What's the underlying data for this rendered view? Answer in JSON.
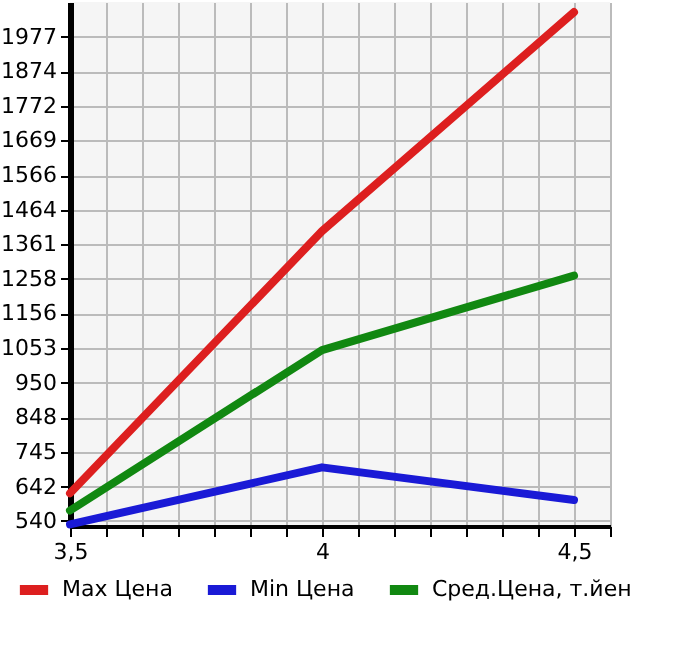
{
  "chart_data": {
    "type": "line",
    "x": [
      3.5,
      4,
      4.5
    ],
    "series": [
      {
        "name": "Max Цена",
        "color": "#dd1f1f",
        "values": [
          622,
          1400,
          2050
        ]
      },
      {
        "name": "Min Цена",
        "color": "#1a1ad6",
        "values": [
          530,
          699,
          602
        ]
      },
      {
        "name": "Сред.Цена, т.йен",
        "color": "#118811",
        "values": [
          571,
          1047,
          1268
        ]
      }
    ],
    "xlim": [
      3.5,
      4.5714
    ],
    "xticks": [
      {
        "value": 3.5,
        "label": "3,5"
      },
      {
        "value": 3.5714,
        "label": null
      },
      {
        "value": 3.6429,
        "label": null
      },
      {
        "value": 3.7143,
        "label": null
      },
      {
        "value": 3.7857,
        "label": null
      },
      {
        "value": 3.8571,
        "label": null
      },
      {
        "value": 3.9286,
        "label": null
      },
      4,
      {
        "value": 4.0714,
        "label": null
      },
      {
        "value": 4.1429,
        "label": null
      },
      {
        "value": 4.2143,
        "label": null
      },
      {
        "value": 4.2857,
        "label": null
      },
      {
        "value": 4.3571,
        "label": null
      },
      {
        "value": 4.4286,
        "label": null
      },
      {
        "value": 4.5,
        "label": "4,5"
      },
      {
        "value": 4.5714,
        "label": null
      }
    ],
    "ylim": [
      525,
      2080
    ],
    "yticks": [
      540,
      642,
      745,
      848,
      950,
      1053,
      1156,
      1258,
      1361,
      1464,
      1566,
      1669,
      1772,
      1874,
      1977
    ],
    "grid": true,
    "legend": "bottom",
    "marker": "none",
    "line_style": "solid"
  }
}
